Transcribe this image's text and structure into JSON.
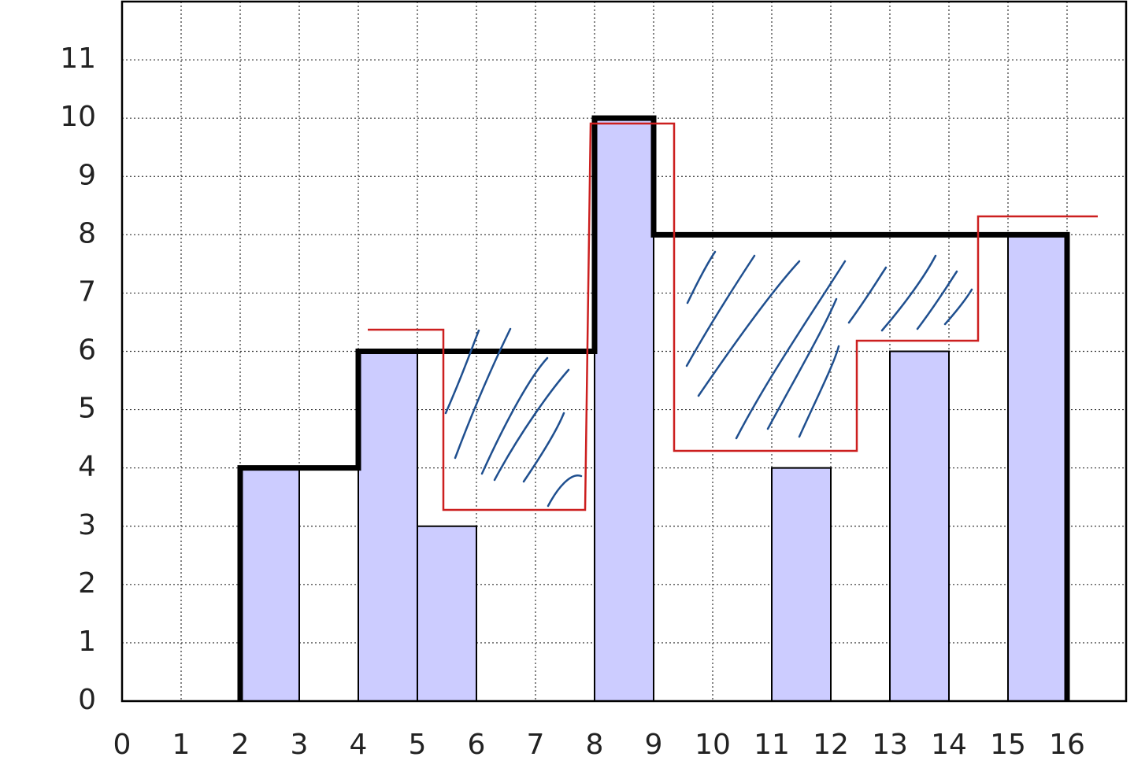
{
  "chart_data": {
    "type": "bar",
    "x_start": [
      2,
      4,
      5,
      8,
      11,
      13,
      15
    ],
    "x_end": [
      3,
      5,
      6,
      9,
      12,
      14,
      16
    ],
    "values": [
      4,
      6,
      3,
      10,
      4,
      6,
      8
    ],
    "color": "#ccccff",
    "line": {
      "color": "#000000",
      "x": [
        2,
        2,
        4,
        4,
        8,
        8,
        9,
        9,
        16,
        16
      ],
      "values": [
        0,
        4,
        4,
        6,
        6,
        10,
        10,
        8,
        8,
        0
      ]
    },
    "xlim": [
      0,
      17
    ],
    "ylim": [
      0,
      12
    ],
    "xticks": [
      0,
      1,
      2,
      3,
      4,
      5,
      6,
      7,
      8,
      9,
      10,
      11,
      12,
      13,
      14,
      15,
      16
    ],
    "yticks": [
      0,
      1,
      2,
      3,
      4,
      5,
      6,
      7,
      8,
      9,
      10,
      11
    ],
    "grid": true
  }
}
